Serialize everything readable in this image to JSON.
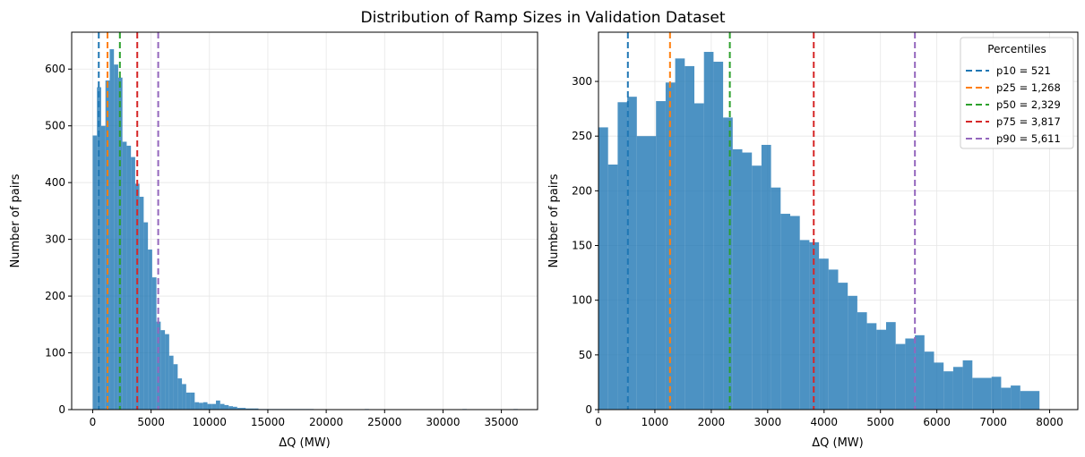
{
  "suptitle": "Distribution of Ramp Sizes in Validation Dataset",
  "colors": {
    "bar": "#1f77b4",
    "p10": "#1f77b4",
    "p25": "#ff7f0e",
    "p50": "#2ca02c",
    "p75": "#d62728",
    "p90": "#9467bd",
    "grid": "#e6e6e6"
  },
  "chart_data": [
    {
      "type": "bar",
      "title": "",
      "xlabel": "ΔQ (MW)",
      "ylabel": "Number of pairs",
      "xlim": [
        -1800,
        38100
      ],
      "ylim": [
        0,
        665
      ],
      "xticks": [
        0,
        5000,
        10000,
        15000,
        20000,
        25000,
        30000,
        35000
      ],
      "xtick_labels": [
        "0",
        "5000",
        "10000",
        "15000",
        "20000",
        "25000",
        "30000",
        "35000"
      ],
      "yticks": [
        0,
        100,
        200,
        300,
        400,
        500,
        600
      ],
      "ytick_labels": [
        "0",
        "100",
        "200",
        "300",
        "400",
        "500",
        "600"
      ],
      "bin_start": 0,
      "bin_width": 364,
      "counts": [
        483,
        568,
        500,
        580,
        635,
        608,
        585,
        472,
        465,
        445,
        398,
        375,
        330,
        282,
        233,
        155,
        140,
        133,
        95,
        80,
        55,
        45,
        30,
        30,
        13,
        12,
        13,
        10,
        10,
        16,
        10,
        8,
        6,
        5,
        3,
        3,
        2,
        2,
        2,
        1,
        1,
        1,
        1,
        1,
        1,
        1,
        1,
        1,
        1,
        1,
        1,
        1,
        0,
        0,
        0,
        0,
        0,
        0,
        0,
        0,
        0,
        0,
        0,
        0,
        1,
        0,
        0,
        0,
        0,
        0,
        0,
        0,
        0,
        0,
        0,
        0,
        0,
        0,
        0,
        0,
        0,
        0,
        0,
        0,
        0,
        0,
        0,
        1,
        0,
        0,
        0,
        0,
        0,
        0,
        0,
        0,
        0,
        0,
        0,
        1
      ],
      "percentiles": [
        {
          "name": "p10",
          "value": 521
        },
        {
          "name": "p25",
          "value": 1268
        },
        {
          "name": "p50",
          "value": 2329
        },
        {
          "name": "p75",
          "value": 3817
        },
        {
          "name": "p90",
          "value": 5611
        }
      ]
    },
    {
      "type": "bar",
      "title": "",
      "xlabel": "ΔQ (MW)",
      "ylabel": "Number of pairs",
      "xlim": [
        0,
        8500
      ],
      "ylim": [
        0,
        345
      ],
      "xticks": [
        0,
        1000,
        2000,
        3000,
        4000,
        5000,
        6000,
        7000,
        8000
      ],
      "xtick_labels": [
        "0",
        "1000",
        "2000",
        "3000",
        "4000",
        "5000",
        "6000",
        "7000",
        "8000"
      ],
      "yticks": [
        0,
        50,
        100,
        150,
        200,
        250,
        300
      ],
      "ytick_labels": [
        "0",
        "50",
        "100",
        "150",
        "200",
        "250",
        "300"
      ],
      "bin_start": 0,
      "bin_width": 170,
      "counts": [
        258,
        224,
        281,
        286,
        250,
        250,
        282,
        299,
        321,
        314,
        280,
        327,
        318,
        267,
        238,
        235,
        223,
        242,
        203,
        179,
        177,
        155,
        153,
        138,
        128,
        116,
        104,
        89,
        79,
        73,
        80,
        60,
        65,
        68,
        53,
        43,
        35,
        39,
        45,
        29,
        29,
        30,
        20,
        22,
        17,
        17
      ],
      "percentiles": [
        {
          "name": "p10",
          "value": 521
        },
        {
          "name": "p25",
          "value": 1268
        },
        {
          "name": "p50",
          "value": 2329
        },
        {
          "name": "p75",
          "value": 3817
        },
        {
          "name": "p90",
          "value": 5611
        }
      ],
      "legend": {
        "title": "Percentiles",
        "placement": "top-right",
        "entries": [
          "p10 = 521",
          "p25 = 1,268",
          "p50 = 2,329",
          "p75 = 3,817",
          "p90 = 5,611"
        ]
      }
    }
  ]
}
